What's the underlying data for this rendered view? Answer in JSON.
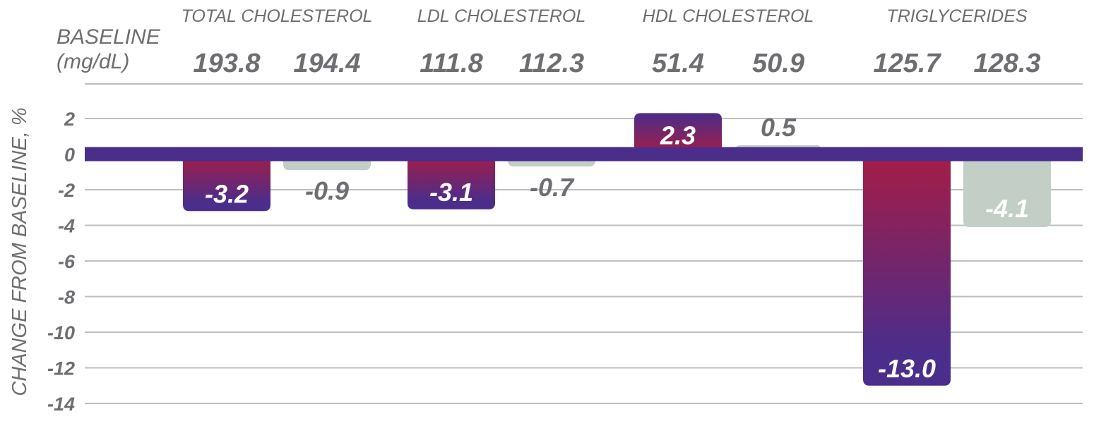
{
  "colors": {
    "treatment_top": "#a51d45",
    "treatment_bottom": "#4b2d8b",
    "placebo": "#c2cec6",
    "zero_line": "#4b2d8b",
    "grid": "#bcbec0",
    "text": "#6d6e71",
    "label_on_bar": "#ffffff"
  },
  "baseline": {
    "title_line1": "BASELINE",
    "title_line2": "(mg/dL)"
  },
  "chart_data": {
    "type": "bar",
    "categories": [
      "TOTAL CHOLESTEROL",
      "LDL CHOLESTEROL",
      "HDL CHOLESTEROL",
      "TRIGLYCERIDES"
    ],
    "baseline_values": [
      [
        "193.8",
        "194.4"
      ],
      [
        "111.8",
        "112.3"
      ],
      [
        "51.4",
        "50.9"
      ],
      [
        "125.7",
        "128.3"
      ]
    ],
    "series": [
      {
        "values": [
          -3.2,
          -3.1,
          2.3,
          -13.0
        ],
        "labels": [
          "-3.2",
          "-3.1",
          "2.3",
          "-13.0"
        ]
      },
      {
        "values": [
          -0.9,
          -0.7,
          0.5,
          -4.1
        ],
        "labels": [
          "-0.9",
          "-0.7",
          "0.5",
          "-4.1"
        ]
      }
    ],
    "ylabel": "CHANGE FROM BASELINE, %",
    "ylim": [
      -14,
      2
    ],
    "yticks": [
      2,
      0,
      -2,
      -4,
      -6,
      -8,
      -10,
      -12,
      -14
    ],
    "grid": true
  }
}
